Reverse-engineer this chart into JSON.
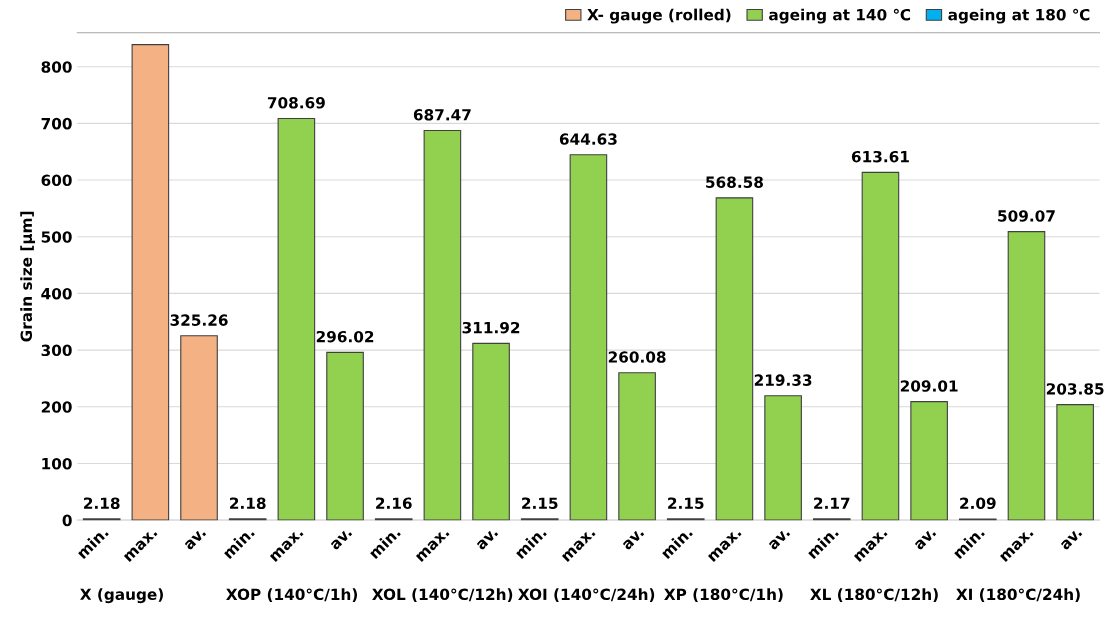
{
  "chart_data": {
    "type": "bar",
    "ylabel": "Grain size [µm]",
    "categories": [
      "min.",
      "max.",
      "av.",
      "min.",
      "max.",
      "av.",
      "min.",
      "max.",
      "av.",
      "min.",
      "max.",
      "av.",
      "min.",
      "max.",
      "av.",
      "min.",
      "max.",
      "av.",
      "min.",
      "max.",
      "av."
    ],
    "series": [
      {
        "name": "X- gauge (rolled)",
        "color": "#f4b183",
        "values": [
          2.18,
          839,
          325.26,
          null,
          null,
          null,
          null,
          null,
          null,
          null,
          null,
          null,
          null,
          null,
          null,
          null,
          null,
          null,
          null,
          null,
          null
        ],
        "value_labels": [
          "2.18",
          null,
          "325.26",
          null,
          null,
          null,
          null,
          null,
          null,
          null,
          null,
          null,
          null,
          null,
          null,
          null,
          null,
          null,
          null,
          null,
          null
        ]
      },
      {
        "name": "ageing at 140 ℃",
        "color": "#92d050",
        "values": [
          null,
          null,
          null,
          2.18,
          708.69,
          296.02,
          2.16,
          687.47,
          311.92,
          2.15,
          644.63,
          260.08,
          2.15,
          568.58,
          219.33,
          2.17,
          613.61,
          209.01,
          2.09,
          509.07,
          203.85
        ],
        "value_labels": [
          null,
          null,
          null,
          "2.18",
          "708.69",
          "296.02",
          "2.16",
          "687.47",
          "311.92",
          "2.15",
          "644.63",
          "260.08",
          "2.15",
          "568.58",
          "219.33",
          "2.17",
          "613.61",
          "209.01",
          "2.09",
          "509.07",
          "203.85"
        ]
      },
      {
        "name": "ageing at 180 ℃",
        "color": "#00b0f0",
        "values": [
          null,
          null,
          null,
          null,
          null,
          null,
          null,
          null,
          null,
          null,
          null,
          null,
          null,
          null,
          null,
          null,
          null,
          null,
          null,
          null,
          null
        ]
      }
    ],
    "annotations": [
      "X (gauge)",
      "XOP (140°C/1h)",
      "XOL (140°C/12h)",
      "XOI (140°C/24h)",
      "XP (180°C/1h)",
      "XL (180°C/12h)",
      "XI (180°C/24h)"
    ],
    "ylim": [
      0,
      860
    ],
    "yticks": [
      0,
      100,
      200,
      300,
      400,
      500,
      600,
      700,
      800
    ],
    "grid": "y",
    "legend": "top right"
  }
}
